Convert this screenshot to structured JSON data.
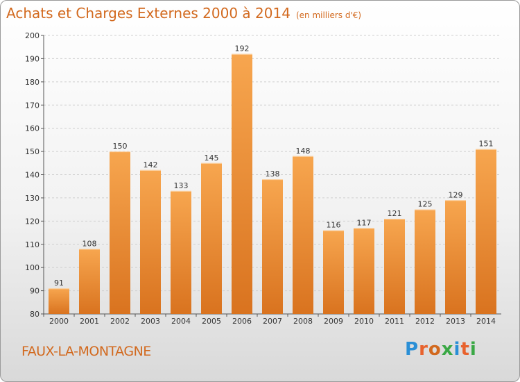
{
  "title": "Achats et Charges Externes 2000 à 2014",
  "subtitle": "(en milliers d'€)",
  "location": "FAUX-LA-MONTAGNE",
  "brand": "Proxiti",
  "colors": {
    "title": "#d2691e",
    "bar_light": "#f7a64f",
    "bar_dark": "#d9731f",
    "brand_letters": [
      "#2a8fd6",
      "#e8622d",
      "#d2691e",
      "#3aa845",
      "#2a8fd6",
      "#e8622d",
      "#3aa845"
    ]
  },
  "chart_data": {
    "type": "bar",
    "title": "Achats et Charges Externes 2000 à 2014",
    "subtitle": "(en milliers d'€)",
    "categories": [
      "2000",
      "2001",
      "2002",
      "2003",
      "2004",
      "2005",
      "2006",
      "2007",
      "2008",
      "2009",
      "2010",
      "2011",
      "2012",
      "2013",
      "2014"
    ],
    "values": [
      91,
      108,
      150,
      142,
      133,
      145,
      192,
      138,
      148,
      116,
      117,
      121,
      125,
      129,
      151
    ],
    "ylim": [
      80,
      200
    ],
    "yticks": [
      80,
      90,
      100,
      110,
      120,
      130,
      140,
      150,
      160,
      170,
      180,
      190,
      200
    ],
    "xlabel": "",
    "ylabel": "",
    "grid": true
  }
}
